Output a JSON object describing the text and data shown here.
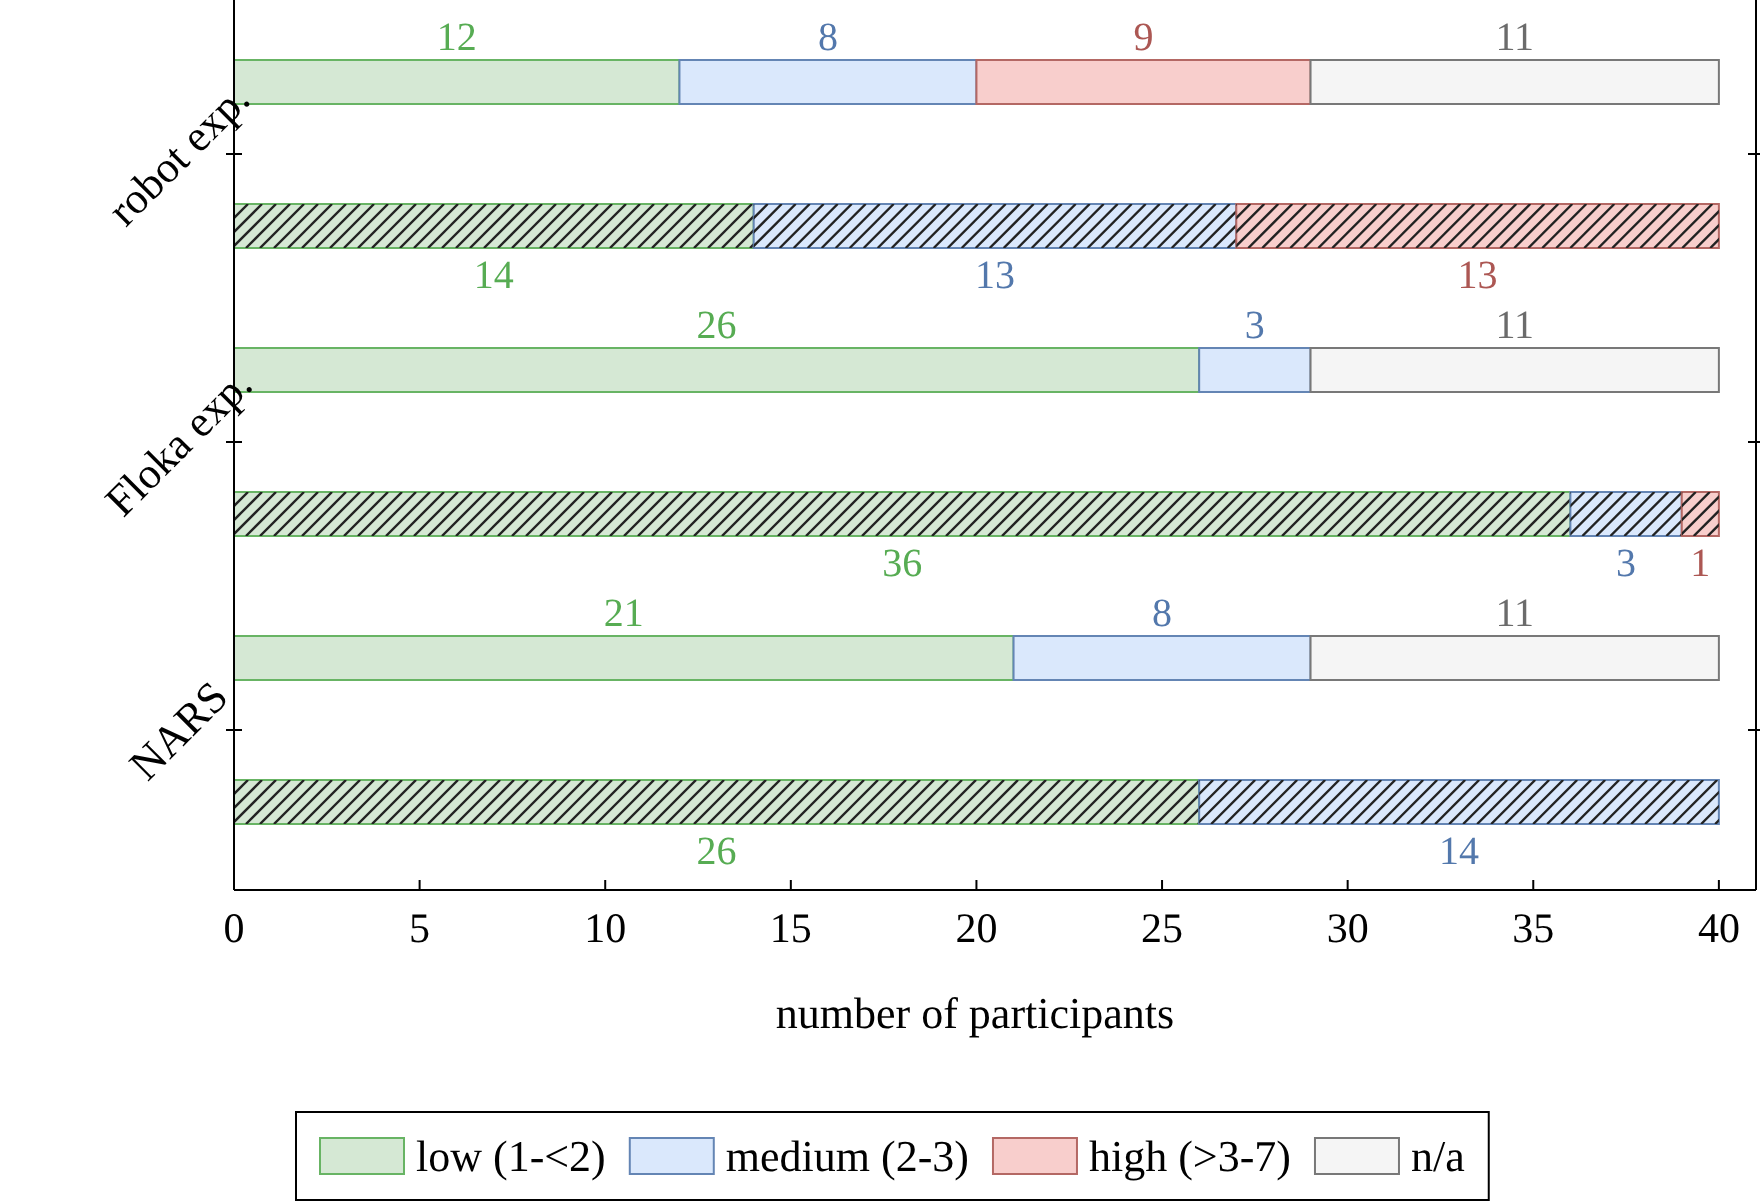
{
  "chart_data": {
    "type": "bar",
    "orientation": "horizontal",
    "stacked": true,
    "categories": [
      "robot exp.",
      null,
      "Floka exp.",
      null,
      "NARS",
      null
    ],
    "xlabel": "number of participants",
    "xlim": [
      0,
      41
    ],
    "xticks": [
      0,
      5,
      10,
      15,
      20,
      25,
      30,
      35,
      40
    ],
    "legend": "bottom",
    "series": [
      {
        "name": "low (1-<2)",
        "color": "#d5e8d4",
        "values": [
          12,
          null,
          26,
          null,
          21,
          null
        ],
        "value_labels": [
          "12",
          null,
          "26",
          null,
          "21",
          null
        ]
      },
      {
        "name": "medium (2-3)",
        "color": "#dae8fc",
        "values": [
          8,
          null,
          3,
          null,
          8,
          null
        ],
        "value_labels": [
          "8",
          null,
          "3",
          null,
          "8",
          null
        ]
      },
      {
        "name": "high (>3-7)",
        "color": "#f8cecc",
        "values": [
          9,
          null,
          0,
          null,
          0,
          null
        ],
        "value_labels": [
          "9",
          null,
          null,
          null,
          null,
          null
        ]
      },
      {
        "name": "n/a",
        "color": "#f5f5f5",
        "values": [
          11,
          null,
          11,
          null,
          11,
          null
        ],
        "value_labels": [
          "11",
          null,
          "11",
          null,
          "11",
          null
        ]
      },
      {
        "color": "#d5e8d4",
        "values": [
          null,
          14,
          null,
          36,
          null,
          26
        ],
        "value_labels": [
          null,
          "14",
          null,
          "36",
          null,
          "26"
        ]
      },
      {
        "color": "#dae8fc",
        "values": [
          null,
          13,
          null,
          3,
          null,
          14
        ],
        "value_labels": [
          null,
          "13",
          null,
          "3",
          null,
          "14"
        ]
      },
      {
        "color": "#f8cecc",
        "values": [
          null,
          13,
          null,
          1,
          null,
          0
        ],
        "value_labels": [
          null,
          "13",
          null,
          "1",
          null,
          null
        ]
      }
    ]
  }
}
